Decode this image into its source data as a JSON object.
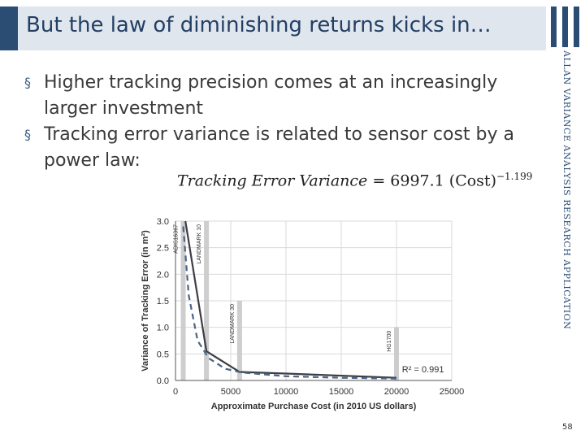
{
  "slide": {
    "title": "But the law of diminishing returns kicks in…",
    "bullet_mark": "§",
    "bullets": [
      "Higher tracking precision comes at an increasingly larger investment",
      "Tracking error variance is related to sensor cost by a power law:"
    ],
    "formula": {
      "lhs": "Tracking Error Variance",
      "rhs": "= 6997.1 (Cost)",
      "exponent": "−1.199"
    },
    "side_text": "ALLAN VARIANCE ANALYSIS RESEARCH APPLICATION",
    "page_number": "58",
    "colors": {
      "accent": "#2c4d73",
      "title_bg": "#dfe6ee"
    }
  },
  "chart_data": {
    "type": "line",
    "xlabel": "Approximate Purchase Cost (in 2010 US dollars)",
    "ylabel": "Variance of Tracking Error (in m²)",
    "xlim": [
      0,
      25000
    ],
    "ylim": [
      0,
      3.0
    ],
    "x_ticks": [
      "0",
      "5000",
      "10000",
      "15000",
      "20000",
      "25000"
    ],
    "y_ticks": [
      "0.0",
      "0.5",
      "1.0",
      "1.5",
      "2.0",
      "2.5",
      "3.0"
    ],
    "grid": true,
    "series": [
      {
        "style": "solid",
        "color": "#3d3d45",
        "points": [
          [
            900,
            3.0
          ],
          [
            2800,
            0.55
          ],
          [
            5800,
            0.16
          ],
          [
            10000,
            0.13
          ],
          [
            20000,
            0.05
          ]
        ]
      },
      {
        "style": "dashed",
        "color": "#4a6488",
        "points": [
          [
            700,
            2.9
          ],
          [
            1200,
            1.6
          ],
          [
            2000,
            0.75
          ],
          [
            3000,
            0.42
          ],
          [
            4500,
            0.22
          ],
          [
            6000,
            0.15
          ],
          [
            10000,
            0.08
          ],
          [
            15000,
            0.05
          ],
          [
            20000,
            0.035
          ]
        ]
      }
    ],
    "sensors": [
      {
        "label": "ADIS16367",
        "x": 700,
        "top": 3.0
      },
      {
        "label": "LANDMARK 10",
        "x": 2800,
        "top": 3.0
      },
      {
        "label": "LANDMARK 30",
        "x": 5800,
        "top": 1.5
      },
      {
        "label": "HG1700",
        "x": 20000,
        "top": 1.0
      }
    ],
    "annotation": "R² = 0.991",
    "annotation_pos": {
      "x": 20500,
      "y": 0.15
    }
  }
}
